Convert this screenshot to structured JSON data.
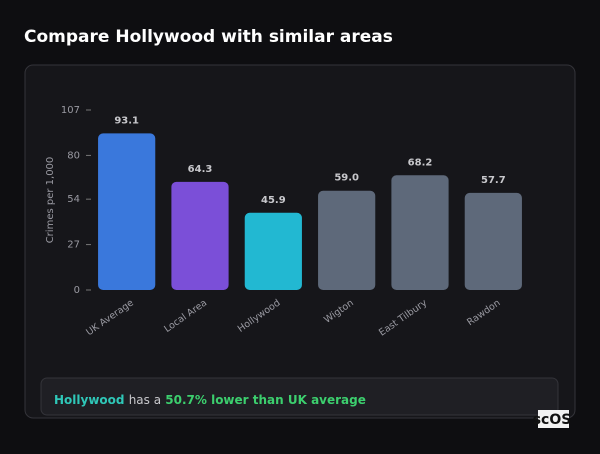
{
  "title": "Compare Hollywood with similar areas",
  "chart_data": {
    "type": "bar",
    "categories": [
      "UK Average",
      "Local Area",
      "Hollywood",
      "Wigton",
      "East Tilbury",
      "Rawdon"
    ],
    "values": [
      93.1,
      64.3,
      45.9,
      59.0,
      68.2,
      57.7
    ],
    "value_labels": [
      "93.1",
      "64.3",
      "45.9",
      "59.0",
      "68.2",
      "57.7"
    ],
    "colors": [
      "#3a78dc",
      "#7b4fd8",
      "#22b8d2",
      "#5e697a",
      "#5e697a",
      "#5e697a"
    ],
    "ylabel": "Crimes per 1,000",
    "ylim": [
      0,
      107
    ],
    "yticks": [
      0,
      27,
      54,
      80,
      107
    ]
  },
  "summary": {
    "area": "Hollywood",
    "text": "has a",
    "comparison": "50.7% lower than UK average"
  },
  "logo": "scOS"
}
